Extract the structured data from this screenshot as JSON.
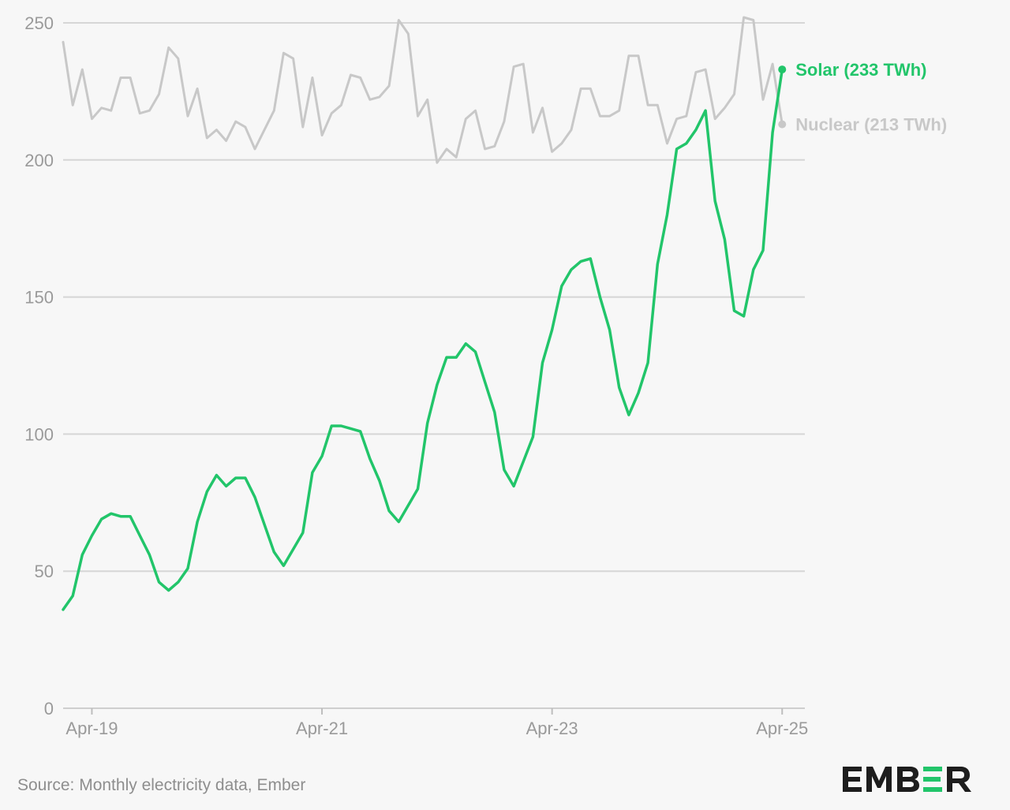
{
  "chart_data": {
    "type": "line",
    "title": "",
    "xlabel": "",
    "ylabel": "",
    "ylim": [
      0,
      250
    ],
    "yticks": [
      0,
      50,
      100,
      150,
      200,
      250
    ],
    "xticks": [
      {
        "date": "2019-04",
        "label": "Apr-19"
      },
      {
        "date": "2021-04",
        "label": "Apr-21"
      },
      {
        "date": "2023-04",
        "label": "Apr-23"
      },
      {
        "date": "2025-04",
        "label": "Apr-25"
      }
    ],
    "x_start": "2019-01",
    "x_end": "2025-04",
    "grid": true,
    "legend": "end-of-line labels",
    "series": [
      {
        "name": "Solar",
        "end_label": "Solar (233 TWh)",
        "color": "#22c56a",
        "values": [
          36,
          41,
          56,
          63,
          69,
          71,
          70,
          70,
          63,
          56,
          46,
          43,
          46,
          51,
          68,
          79,
          85,
          81,
          84,
          84,
          77,
          67,
          57,
          52,
          58,
          64,
          86,
          92,
          103,
          103,
          102,
          101,
          91,
          83,
          72,
          68,
          74,
          80,
          104,
          118,
          128,
          128,
          133,
          130,
          119,
          108,
          87,
          81,
          90,
          99,
          126,
          138,
          154,
          160,
          163,
          164,
          150,
          138,
          117,
          107,
          115,
          126,
          162,
          180,
          204,
          206,
          211,
          218,
          185,
          171,
          145,
          143,
          160,
          167,
          210,
          233
        ]
      },
      {
        "name": "Nuclear",
        "end_label": "Nuclear (213 TWh)",
        "color": "#c8c8c8",
        "values": [
          243,
          220,
          233,
          215,
          219,
          218,
          230,
          230,
          217,
          218,
          224,
          241,
          237,
          216,
          226,
          208,
          211,
          207,
          214,
          212,
          204,
          211,
          218,
          239,
          237,
          212,
          230,
          209,
          217,
          220,
          231,
          230,
          222,
          223,
          227,
          251,
          246,
          216,
          222,
          199,
          204,
          201,
          215,
          218,
          204,
          205,
          214,
          234,
          235,
          210,
          219,
          203,
          206,
          211,
          226,
          226,
          216,
          216,
          218,
          238,
          238,
          220,
          220,
          206,
          215,
          216,
          232,
          233,
          215,
          219,
          224,
          252,
          251,
          222,
          235,
          213
        ]
      }
    ]
  },
  "footer": {
    "source": "Source: Monthly electricity data, Ember",
    "logo_text": "EMBER"
  }
}
